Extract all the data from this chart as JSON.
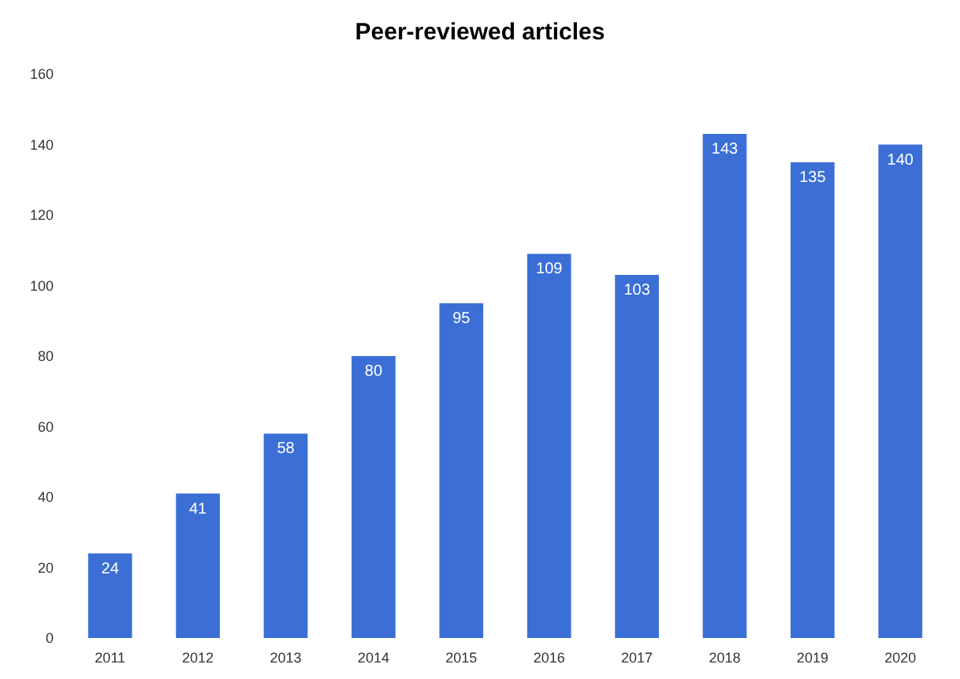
{
  "chart_data": {
    "type": "bar",
    "title": "Peer-reviewed articles",
    "categories": [
      "2011",
      "2012",
      "2013",
      "2014",
      "2015",
      "2016",
      "2017",
      "2018",
      "2019",
      "2020"
    ],
    "values": [
      24,
      41,
      58,
      80,
      95,
      109,
      103,
      143,
      135,
      140
    ],
    "color": "#3b6fd6",
    "ylim": [
      0,
      160
    ],
    "yticks": [
      0,
      20,
      40,
      60,
      80,
      100,
      120,
      140,
      160
    ],
    "grid": false,
    "data_labels": true
  }
}
